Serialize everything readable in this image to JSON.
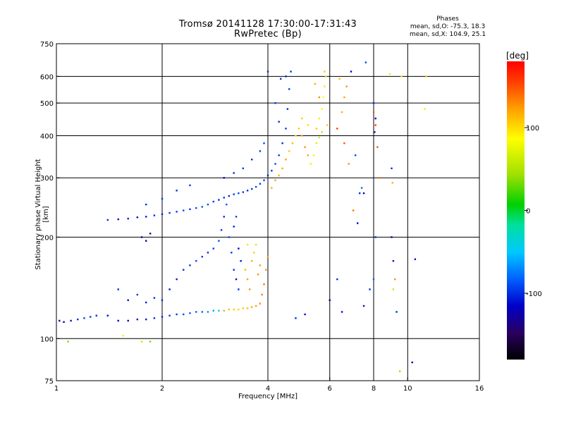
{
  "header": {
    "title": "Tromsø 20141128 17:30:00-17:31:43",
    "subtitle": "RwPretec (Bp)"
  },
  "phase_stats": {
    "heading": "Phases",
    "line_o": "mean, sd,O: -75.3, 18.3",
    "line_x": "mean, sd,X: 104.9, 25.1"
  },
  "chart_data": {
    "type": "scatter",
    "title": "Tromsø 20141128 17:30:00-17:31:43",
    "subtitle": "RwPretec (Bp)",
    "xlabel": "Frequency [MHz]",
    "ylabel": "Stationary phase Virtual Height [km]",
    "x_scale": "log",
    "y_scale": "log",
    "xlim": [
      1,
      16
    ],
    "ylim": [
      75,
      750
    ],
    "x_ticks": [
      1,
      2,
      4,
      6,
      8,
      10,
      16
    ],
    "x_tick_labels": [
      "1",
      "2",
      "4",
      "6",
      "8",
      "10",
      "16"
    ],
    "y_ticks": [
      75,
      100,
      200,
      300,
      400,
      500,
      600,
      750
    ],
    "y_tick_labels": [
      "75",
      "100",
      "200",
      "300",
      "400",
      "500",
      "600",
      "750"
    ],
    "x_grid": [
      2,
      4,
      6,
      8,
      10
    ],
    "y_grid": [
      100,
      200,
      300,
      400,
      500,
      600
    ],
    "grid": true,
    "colorbar": {
      "label": "[deg]",
      "ticks": [
        100,
        0,
        -100
      ],
      "tick_labels": [
        "100",
        "0",
        "-100"
      ],
      "range": [
        -180,
        180
      ],
      "colors": [
        "#000000",
        "#2a0060",
        "#0000c8",
        "#0060ff",
        "#00c8ff",
        "#00e0a0",
        "#00d000",
        "#a0e000",
        "#ffff00",
        "#ffa000",
        "#ff4000",
        "#ff0000"
      ]
    },
    "series": [
      {
        "points": [
          [
            1.02,
            113,
            -130
          ],
          [
            1.05,
            112,
            -125
          ],
          [
            1.1,
            113,
            -110
          ],
          [
            1.15,
            114,
            -100
          ],
          [
            1.2,
            115,
            -90
          ],
          [
            1.25,
            116,
            -95
          ],
          [
            1.3,
            117,
            -100
          ],
          [
            1.4,
            117,
            -110
          ],
          [
            1.5,
            113,
            -120
          ],
          [
            1.6,
            113,
            -115
          ],
          [
            1.7,
            114,
            -110
          ],
          [
            1.8,
            114,
            -105
          ],
          [
            1.9,
            115,
            -100
          ],
          [
            2.0,
            116,
            -100
          ],
          [
            2.1,
            117,
            -95
          ],
          [
            2.2,
            118,
            -95
          ],
          [
            2.3,
            118,
            -90
          ],
          [
            2.4,
            119,
            -85
          ],
          [
            2.5,
            120,
            -85
          ],
          [
            2.6,
            120,
            -80
          ],
          [
            2.7,
            120,
            -70
          ],
          [
            2.8,
            121,
            -60
          ],
          [
            2.9,
            121,
            -50
          ],
          [
            3.0,
            121,
            110
          ],
          [
            3.1,
            122,
            105
          ],
          [
            3.2,
            122,
            100
          ],
          [
            3.3,
            122,
            95
          ],
          [
            3.4,
            123,
            100
          ],
          [
            3.5,
            123,
            105
          ],
          [
            3.6,
            124,
            110
          ],
          [
            3.7,
            125,
            115
          ],
          [
            3.8,
            127,
            120
          ],
          [
            3.85,
            135,
            125
          ],
          [
            3.9,
            145,
            130
          ],
          [
            3.95,
            160,
            120
          ],
          [
            4.0,
            175,
            115
          ],
          [
            2.0,
            130,
            -100
          ],
          [
            2.1,
            140,
            -110
          ],
          [
            2.2,
            150,
            -105
          ],
          [
            2.3,
            160,
            -100
          ],
          [
            2.4,
            165,
            -95
          ],
          [
            2.5,
            170,
            -90
          ],
          [
            2.6,
            175,
            -95
          ],
          [
            2.7,
            180,
            -100
          ],
          [
            2.8,
            185,
            -95
          ],
          [
            2.9,
            195,
            -90
          ],
          [
            2.95,
            210,
            -95
          ],
          [
            3.0,
            230,
            -100
          ],
          [
            3.05,
            250,
            -85
          ],
          [
            3.1,
            200,
            -90
          ],
          [
            3.15,
            180,
            -95
          ],
          [
            3.2,
            160,
            -100
          ],
          [
            3.25,
            150,
            -110
          ],
          [
            3.3,
            140,
            -100
          ],
          [
            3.3,
            185,
            -120
          ],
          [
            3.35,
            170,
            -110
          ],
          [
            3.2,
            215,
            -105
          ],
          [
            3.25,
            230,
            -95
          ],
          [
            1.5,
            140,
            -100
          ],
          [
            1.6,
            130,
            -110
          ],
          [
            1.7,
            135,
            -95
          ],
          [
            1.8,
            128,
            -105
          ],
          [
            1.9,
            132,
            -100
          ],
          [
            3.45,
            160,
            105
          ],
          [
            3.5,
            150,
            115
          ],
          [
            3.6,
            170,
            110
          ],
          [
            3.65,
            180,
            100
          ],
          [
            3.7,
            190,
            95
          ],
          [
            3.55,
            140,
            120
          ],
          [
            3.75,
            155,
            120
          ],
          [
            3.8,
            165,
            115
          ],
          [
            3.5,
            190,
            90
          ],
          [
            1.08,
            98,
            40
          ],
          [
            1.55,
            102,
            90
          ],
          [
            1.75,
            98,
            60
          ],
          [
            1.85,
            98,
            40
          ],
          [
            1.4,
            225,
            -100
          ],
          [
            1.5,
            226,
            -110
          ],
          [
            1.6,
            227,
            -105
          ],
          [
            1.7,
            229,
            -110
          ],
          [
            1.8,
            230,
            -105
          ],
          [
            1.9,
            232,
            -100
          ],
          [
            2.0,
            234,
            -100
          ],
          [
            2.1,
            236,
            -95
          ],
          [
            2.2,
            238,
            -95
          ],
          [
            2.3,
            240,
            -90
          ],
          [
            2.4,
            242,
            -95
          ],
          [
            2.5,
            244,
            -90
          ],
          [
            2.6,
            246,
            -85
          ],
          [
            2.7,
            250,
            -90
          ],
          [
            2.8,
            255,
            -95
          ],
          [
            2.9,
            258,
            -100
          ],
          [
            3.0,
            262,
            -95
          ],
          [
            3.1,
            265,
            -100
          ],
          [
            3.2,
            268,
            -95
          ],
          [
            3.3,
            270,
            -90
          ],
          [
            3.4,
            272,
            -95
          ],
          [
            3.5,
            275,
            -100
          ],
          [
            3.6,
            278,
            -95
          ],
          [
            3.7,
            282,
            -90
          ],
          [
            3.8,
            288,
            -95
          ],
          [
            3.9,
            295,
            -90
          ],
          [
            4.0,
            305,
            -100
          ],
          [
            4.1,
            315,
            -95
          ],
          [
            4.2,
            330,
            -90
          ],
          [
            4.3,
            350,
            -95
          ],
          [
            4.4,
            380,
            -100
          ],
          [
            4.5,
            420,
            -95
          ],
          [
            4.55,
            480,
            -100
          ],
          [
            4.6,
            550,
            -95
          ],
          [
            4.65,
            620,
            -100
          ],
          [
            3.0,
            300,
            -110
          ],
          [
            3.2,
            310,
            -100
          ],
          [
            3.4,
            320,
            -95
          ],
          [
            3.6,
            340,
            -100
          ],
          [
            3.8,
            360,
            -95
          ],
          [
            3.9,
            380,
            -90
          ],
          [
            2.0,
            260,
            -95
          ],
          [
            2.2,
            275,
            -100
          ],
          [
            2.4,
            285,
            -95
          ],
          [
            1.8,
            250,
            -100
          ],
          [
            1.75,
            200,
            -120
          ],
          [
            1.8,
            195,
            -130
          ],
          [
            1.85,
            205,
            -125
          ],
          [
            4.3,
            440,
            -100
          ],
          [
            4.2,
            500,
            -95
          ],
          [
            4.35,
            590,
            -100
          ],
          [
            4.5,
            600,
            -105
          ],
          [
            4.0,
            620,
            -100
          ],
          [
            4.1,
            280,
            110
          ],
          [
            4.2,
            295,
            115
          ],
          [
            4.3,
            305,
            105
          ],
          [
            4.4,
            320,
            110
          ],
          [
            4.5,
            340,
            115
          ],
          [
            4.6,
            360,
            100
          ],
          [
            4.7,
            380,
            105
          ],
          [
            4.8,
            400,
            95
          ],
          [
            4.9,
            420,
            100
          ],
          [
            5.0,
            400,
            110
          ],
          [
            5.1,
            370,
            120
          ],
          [
            5.2,
            350,
            115
          ],
          [
            5.3,
            330,
            110
          ],
          [
            5.0,
            450,
            100
          ],
          [
            5.2,
            430,
            95
          ],
          [
            5.5,
            420,
            100
          ],
          [
            5.6,
            450,
            90
          ],
          [
            5.7,
            480,
            85
          ],
          [
            5.75,
            520,
            80
          ],
          [
            5.8,
            560,
            90
          ],
          [
            5.85,
            600,
            95
          ],
          [
            5.5,
            380,
            70
          ],
          [
            5.6,
            395,
            65
          ],
          [
            5.7,
            410,
            60
          ],
          [
            5.4,
            350,
            75
          ],
          [
            5.3,
            330,
            80
          ],
          [
            5.8,
            620,
            100
          ],
          [
            5.6,
            520,
            120
          ],
          [
            5.9,
            430,
            100
          ],
          [
            5.45,
            570,
            110
          ],
          [
            6.5,
            470,
            110
          ],
          [
            6.6,
            520,
            115
          ],
          [
            6.7,
            560,
            120
          ],
          [
            6.4,
            590,
            100
          ],
          [
            6.3,
            420,
            150
          ],
          [
            6.6,
            380,
            140
          ],
          [
            6.8,
            330,
            120
          ],
          [
            7.0,
            240,
            130
          ],
          [
            7.2,
            220,
            -110
          ],
          [
            7.3,
            270,
            -100
          ],
          [
            7.4,
            280,
            -80
          ],
          [
            7.1,
            350,
            -90
          ],
          [
            6.9,
            620,
            -120
          ],
          [
            7.5,
            270,
            -130
          ],
          [
            7.6,
            660,
            -90
          ],
          [
            8.0,
            470,
            140
          ],
          [
            8.1,
            430,
            150
          ],
          [
            8.2,
            370,
            140
          ],
          [
            8.3,
            300,
            130
          ],
          [
            8.0,
            500,
            -100
          ],
          [
            8.05,
            410,
            -110
          ],
          [
            8.1,
            450,
            -120
          ],
          [
            9.0,
            320,
            -100
          ],
          [
            9.05,
            290,
            110
          ],
          [
            9.0,
            200,
            -150
          ],
          [
            9.1,
            170,
            -110
          ],
          [
            9.2,
            150,
            120
          ],
          [
            9.3,
            120,
            -100
          ],
          [
            8.9,
            610,
            90
          ],
          [
            9.5,
            80,
            50
          ],
          [
            9.6,
            600,
            90
          ],
          [
            10.3,
            85,
            -130
          ],
          [
            10.5,
            172,
            -110
          ],
          [
            11.2,
            480,
            90
          ],
          [
            11.3,
            600,
            100
          ],
          [
            7.5,
            125,
            -110
          ],
          [
            6.5,
            120,
            -110
          ],
          [
            6.3,
            150,
            -100
          ],
          [
            4.8,
            115,
            -100
          ],
          [
            5.1,
            118,
            -110
          ],
          [
            6.0,
            130,
            -120
          ],
          [
            8.1,
            200,
            -100
          ],
          [
            7.8,
            140,
            -100
          ],
          [
            8.0,
            150,
            -80
          ],
          [
            9.1,
            140,
            60
          ]
        ]
      }
    ]
  }
}
